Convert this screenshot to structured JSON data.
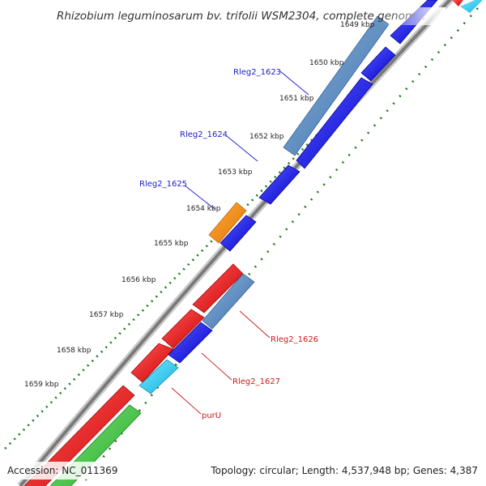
{
  "title": "Rhizobium leguminosarum bv. trifolii WSM2304, complete genom...",
  "footer": {
    "accession": "Accession: NC_011369",
    "summary": "Topology: circular; Length: 4,537,948 bp; Genes: 4,387"
  },
  "ticks": [
    "1649 kbp",
    "1650 kbp",
    "1651 kbp",
    "1652 kbp",
    "1653 kbp",
    "1654 kbp",
    "1655 kbp",
    "1656 kbp",
    "1657 kbp",
    "1658 kbp",
    "1659 kbp"
  ],
  "gene_labels": [
    {
      "text": "Rleg2_1623",
      "strand": "forward"
    },
    {
      "text": "Rleg2_1624",
      "strand": "forward"
    },
    {
      "text": "Rleg2_1625",
      "strand": "forward"
    },
    {
      "text": "Rleg2_1626",
      "strand": "reverse"
    },
    {
      "text": "Rleg2_1627",
      "strand": "reverse"
    },
    {
      "text": "purU",
      "strand": "reverse"
    }
  ],
  "colors": {
    "forward_label": "#1a1acc",
    "reverse_label": "#cc1a1a",
    "backbone": "#8a8a8a",
    "gene_blue": "#0a0ae0",
    "gene_steelblue": "#4f86c0",
    "gene_red": "#ee1111",
    "gene_orange": "#ff8c00",
    "gene_cyan": "#22ccf2",
    "gene_green": "#33cc33",
    "tick_dots": "#1a7a1a"
  }
}
